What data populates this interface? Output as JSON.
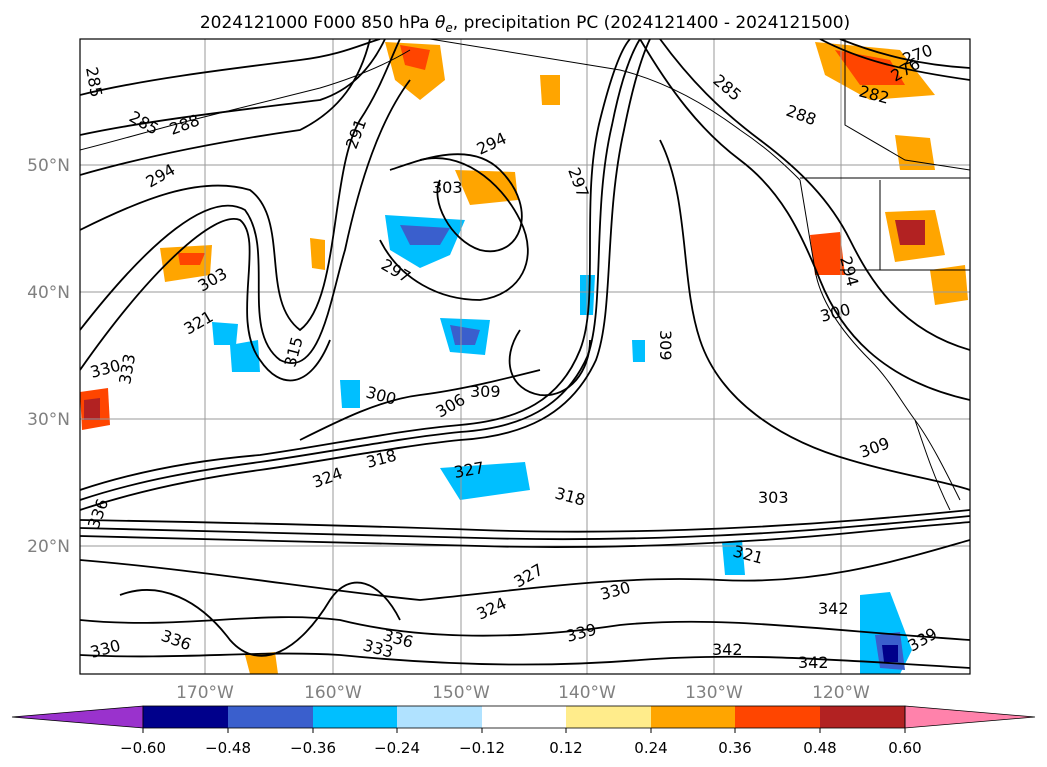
{
  "title": {
    "run": "2024121000",
    "forecast_hour": "F000",
    "level": "850 hPa",
    "variable_prefix": "θ",
    "variable_sub": "e",
    "rest": ", precipitation PC (2024121400 - 2024121500)"
  },
  "map": {
    "lat_ticks": [
      "50°N",
      "40°N",
      "30°N",
      "20°N"
    ],
    "lon_ticks": [
      "170°W",
      "160°W",
      "150°W",
      "140°W",
      "130°W",
      "120°W"
    ],
    "gridlines": true
  },
  "colorbar": {
    "ticks": [
      "−0.60",
      "−0.48",
      "−0.36",
      "−0.24",
      "−0.12",
      "0.12",
      "0.24",
      "0.36",
      "0.48",
      "0.60"
    ],
    "colors": [
      "#9a32cd",
      "#00008b",
      "#3a5fcd",
      "#00bfff",
      "#b0e2ff",
      "#ffffff",
      "#ffec8b",
      "#ffa500",
      "#ff4500",
      "#b22222",
      "#ff82ab"
    ],
    "extend": "both"
  },
  "contour_labels": [
    "285",
    "285",
    "288",
    "291",
    "294",
    "294",
    "297",
    "297",
    "303",
    "300",
    "303",
    "306",
    "309",
    "309",
    "315",
    "318",
    "318",
    "321",
    "321",
    "324",
    "324",
    "327",
    "327",
    "330",
    "330",
    "333",
    "336",
    "336",
    "339",
    "339",
    "342",
    "342",
    "342",
    "285",
    "288",
    "270",
    "276",
    "282",
    "294",
    "300",
    "309",
    "303",
    "330",
    "333",
    "336"
  ],
  "chart_data": {
    "type": "heatmap",
    "title": "2024121000 F000 850 hPa θe, precipitation PC (2024121400 - 2024121500)",
    "lon_range": [
      "180°W",
      "110°W"
    ],
    "lat_range": [
      "10°N",
      "60°N"
    ],
    "contour_interval": 3,
    "contour_levels_labeled": [
      270,
      276,
      282,
      285,
      288,
      291,
      294,
      297,
      300,
      303,
      306,
      309,
      315,
      318,
      321,
      324,
      327,
      330,
      333,
      336,
      339,
      342
    ],
    "colorbar_levels": [
      -0.6,
      -0.48,
      -0.36,
      -0.24,
      -0.12,
      0.12,
      0.24,
      0.36,
      0.48,
      0.6
    ],
    "grid": true
  }
}
